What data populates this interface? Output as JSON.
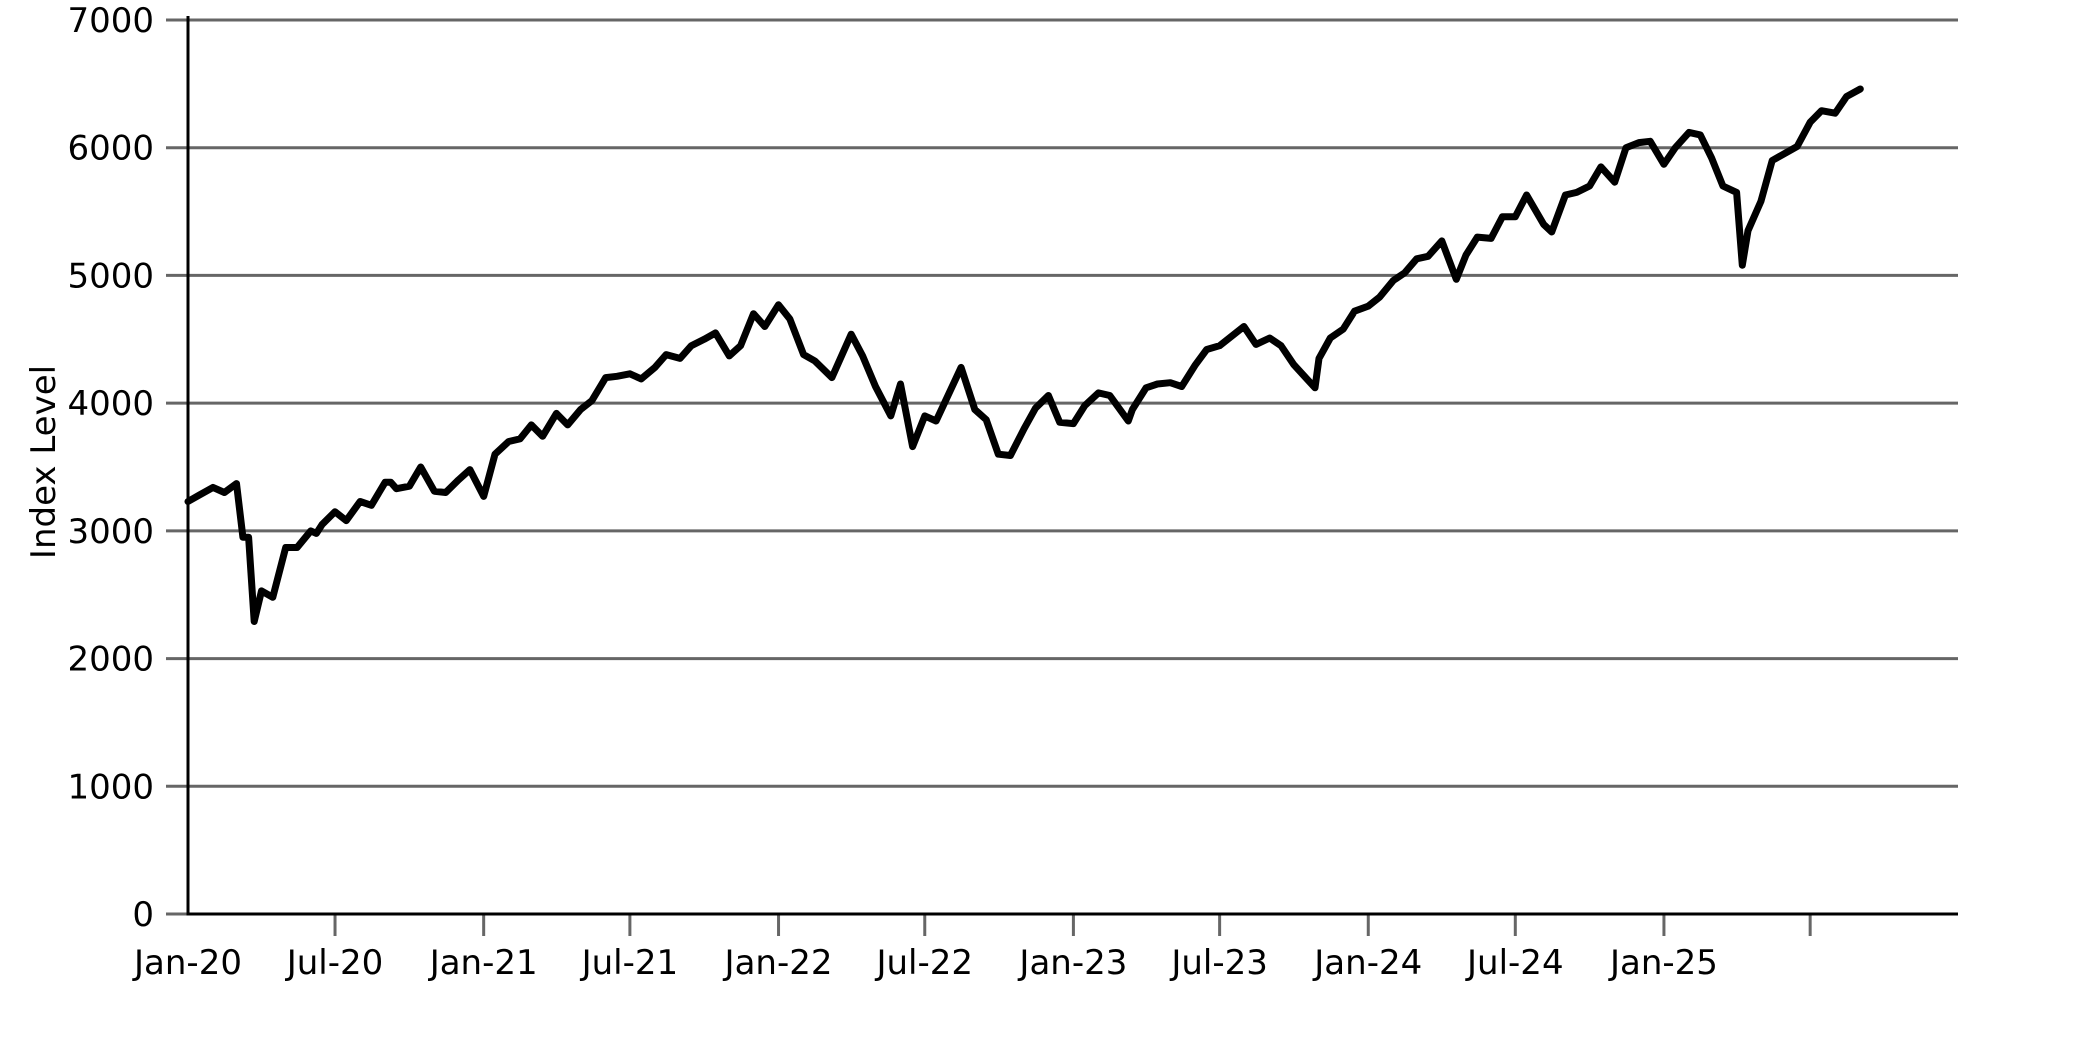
{
  "chart_data": {
    "type": "line",
    "title": "",
    "xlabel": "",
    "ylabel": "Index Level",
    "ylim": [
      0,
      7000
    ],
    "xlim": [
      "2020-01-01",
      "2025-12-31"
    ],
    "grid": {
      "horizontal": true,
      "vertical": false,
      "color": "#666666"
    },
    "line_color": "#000000",
    "y_ticks": [
      0,
      1000,
      2000,
      3000,
      4000,
      5000,
      6000,
      7000
    ],
    "y_tick_labels": [
      "0",
      "1000",
      "2000",
      "3000",
      "4000",
      "5000",
      "6000",
      "7000"
    ],
    "x_ticks": [
      "2020-01-01",
      "2020-07-01",
      "2021-01-01",
      "2021-07-01",
      "2022-01-01",
      "2022-07-01",
      "2023-01-01",
      "2023-07-01",
      "2024-01-01",
      "2024-07-01",
      "2025-01-01",
      "2025-07-01"
    ],
    "x_tick_labels": [
      "Jan-20",
      "Jul-20",
      "Jan-21",
      "Jul-21",
      "Jan-22",
      "Jul-22",
      "Jan-23",
      "Jul-23",
      "Jan-24",
      "Jul-24",
      "Jan-25",
      ""
    ],
    "series": [
      {
        "x": [
          "2020-01-01",
          "2020-01-15",
          "2020-02-01",
          "2020-02-15",
          "2020-03-01",
          "2020-03-09",
          "2020-03-16",
          "2020-03-23",
          "2020-04-01",
          "2020-04-15",
          "2020-05-01",
          "2020-05-15",
          "2020-06-01",
          "2020-06-08",
          "2020-06-15",
          "2020-07-01",
          "2020-07-15",
          "2020-08-01",
          "2020-08-15",
          "2020-09-01",
          "2020-09-08",
          "2020-09-15",
          "2020-10-01",
          "2020-10-15",
          "2020-11-01",
          "2020-11-15",
          "2020-12-01",
          "2020-12-15",
          "2021-01-01",
          "2021-01-15",
          "2021-02-01",
          "2021-02-15",
          "2021-03-01",
          "2021-03-15",
          "2021-04-01",
          "2021-04-15",
          "2021-05-01",
          "2021-05-15",
          "2021-06-01",
          "2021-06-15",
          "2021-07-01",
          "2021-07-15",
          "2021-08-01",
          "2021-08-15",
          "2021-09-01",
          "2021-09-15",
          "2021-10-01",
          "2021-10-15",
          "2021-11-01",
          "2021-11-15",
          "2021-12-01",
          "2021-12-15",
          "2022-01-01",
          "2022-01-15",
          "2022-02-01",
          "2022-02-15",
          "2022-03-08",
          "2022-04-01",
          "2022-04-15",
          "2022-05-01",
          "2022-05-20",
          "2022-06-01",
          "2022-06-16",
          "2022-07-01",
          "2022-07-15",
          "2022-08-15",
          "2022-09-01",
          "2022-09-15",
          "2022-09-30",
          "2022-10-15",
          "2022-11-01",
          "2022-11-15",
          "2022-12-01",
          "2022-12-15",
          "2023-01-01",
          "2023-01-15",
          "2023-02-01",
          "2023-02-15",
          "2023-03-10",
          "2023-03-15",
          "2023-04-01",
          "2023-04-15",
          "2023-05-01",
          "2023-05-15",
          "2023-06-01",
          "2023-06-15",
          "2023-07-01",
          "2023-07-31",
          "2023-08-15",
          "2023-09-01",
          "2023-09-15",
          "2023-10-01",
          "2023-10-27",
          "2023-11-01",
          "2023-11-15",
          "2023-12-01",
          "2023-12-15",
          "2024-01-01",
          "2024-01-15",
          "2024-02-01",
          "2024-02-15",
          "2024-03-01",
          "2024-03-15",
          "2024-04-01",
          "2024-04-19",
          "2024-05-01",
          "2024-05-15",
          "2024-06-01",
          "2024-06-15",
          "2024-07-01",
          "2024-07-15",
          "2024-08-05",
          "2024-08-15",
          "2024-09-01",
          "2024-09-15",
          "2024-10-01",
          "2024-10-15",
          "2024-11-01",
          "2024-11-15",
          "2024-12-01",
          "2024-12-15",
          "2025-01-01",
          "2025-01-15",
          "2025-02-01",
          "2025-02-15",
          "2025-03-01",
          "2025-03-15",
          "2025-04-01",
          "2025-04-08",
          "2025-04-15",
          "2025-05-01",
          "2025-05-15",
          "2025-06-01",
          "2025-06-15",
          "2025-07-01",
          "2025-07-15",
          "2025-08-01",
          "2025-08-15",
          "2025-09-01"
        ],
        "values": [
          3230,
          3280,
          3340,
          3300,
          3370,
          2950,
          2950,
          2290,
          2530,
          2480,
          2870,
          2870,
          3000,
          2980,
          3050,
          3150,
          3080,
          3230,
          3200,
          3380,
          3380,
          3330,
          3350,
          3500,
          3310,
          3300,
          3400,
          3480,
          3270,
          3600,
          3700,
          3720,
          3830,
          3740,
          3920,
          3830,
          3950,
          4020,
          4200,
          4210,
          4230,
          4190,
          4280,
          4380,
          4350,
          4450,
          4500,
          4550,
          4370,
          4450,
          4700,
          4600,
          4770,
          4660,
          4380,
          4330,
          4200,
          4540,
          4370,
          4130,
          3900,
          4150,
          3660,
          3900,
          3860,
          4280,
          3950,
          3870,
          3600,
          3590,
          3800,
          3960,
          4060,
          3850,
          3840,
          3980,
          4080,
          4060,
          3860,
          3950,
          4120,
          4150,
          4160,
          4130,
          4300,
          4420,
          4450,
          4600,
          4460,
          4510,
          4450,
          4300,
          4120,
          4350,
          4510,
          4580,
          4720,
          4760,
          4830,
          4960,
          5020,
          5130,
          5150,
          5270,
          4970,
          5160,
          5300,
          5290,
          5460,
          5460,
          5630,
          5400,
          5340,
          5630,
          5650,
          5700,
          5850,
          5730,
          6000,
          6040,
          6050,
          5870,
          6000,
          6120,
          6100,
          5920,
          5700,
          5650,
          5080,
          5350,
          5580,
          5900,
          5960,
          6010,
          6200,
          6290,
          6270,
          6400,
          6460
        ]
      }
    ]
  }
}
